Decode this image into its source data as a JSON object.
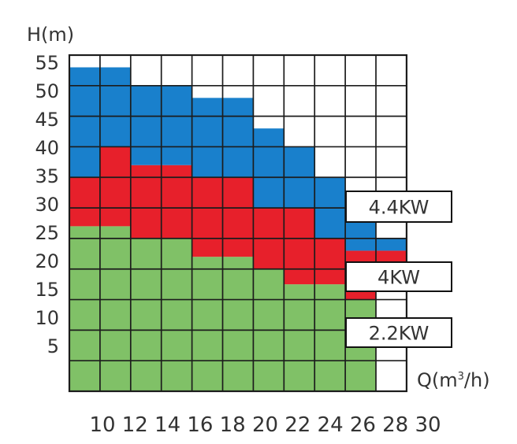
{
  "page": {
    "background": "#ffffff"
  },
  "chart_data": {
    "type": "area",
    "chart_kind": "stepped-region pump power selection chart",
    "title": "",
    "xlabel": "Q(m³/h)",
    "ylabel": "H(m)",
    "x_ticks": [
      "10",
      "12",
      "14",
      "16",
      "18",
      "20",
      "22",
      "24",
      "26",
      "28",
      "30"
    ],
    "y_ticks": [
      "55",
      "50",
      "45",
      "40",
      "35",
      "30",
      "25",
      "20",
      "15",
      "10",
      "5"
    ],
    "xlim": [
      8,
      30
    ],
    "ylim": [
      0,
      55
    ],
    "grid": true,
    "q_columns": [
      [
        8,
        10
      ],
      [
        10,
        12
      ],
      [
        12,
        14
      ],
      [
        14,
        16
      ],
      [
        16,
        18
      ],
      [
        18,
        20
      ],
      [
        20,
        22
      ],
      [
        22,
        24
      ],
      [
        24,
        26
      ],
      [
        26,
        28
      ],
      [
        28,
        30
      ]
    ],
    "series": [
      {
        "name": "2.2KW",
        "color": "#80c167",
        "h_top": [
          27,
          27,
          25,
          25,
          22,
          22,
          20,
          17.5,
          17.5,
          15,
          null
        ],
        "h_bottom": [
          0,
          0,
          0,
          0,
          0,
          0,
          0,
          0,
          0,
          0,
          null
        ]
      },
      {
        "name": "4KW",
        "color": "#e7202b",
        "h_top": [
          35,
          40,
          37,
          37,
          35,
          35,
          30,
          30,
          25,
          23,
          23
        ],
        "h_bottom": [
          27,
          27,
          25,
          25,
          22,
          22,
          20,
          17.5,
          17.5,
          15,
          21
        ]
      },
      {
        "name": "4.4KW",
        "color": "#1980cc",
        "h_top": [
          53,
          53,
          50,
          50,
          48,
          48,
          43,
          40,
          35,
          30,
          25
        ],
        "h_bottom": [
          35,
          40,
          37,
          37,
          35,
          35,
          30,
          30,
          25,
          23,
          23
        ]
      }
    ],
    "power_labels": [
      "4.4KW",
      "4KW",
      "2.2KW"
    ],
    "axis_label_parts": {
      "q_prefix": "Q(m",
      "q_sup": "3",
      "q_suffix": "/h)"
    },
    "legend_position": "right-overlay",
    "colors": {
      "blue": "#1980cc",
      "red": "#e7202b",
      "green": "#80c167",
      "grid_line": "#1c1c1c",
      "text": "#333333",
      "label_box_fill": "#ffffff",
      "label_box_border": "#111111"
    }
  }
}
